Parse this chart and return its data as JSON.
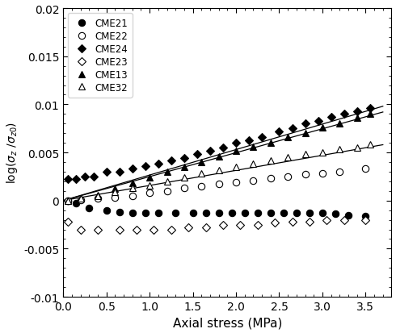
{
  "xlabel": "Axial stress (MPa)",
  "ylabel": "log(σ_z /σ_z0)",
  "xlim": [
    0,
    3.8
  ],
  "ylim": [
    -0.01,
    0.02
  ],
  "yticks": [
    -0.01,
    -0.005,
    0,
    0.005,
    0.01,
    0.015,
    0.02
  ],
  "xticks": [
    0,
    0.5,
    1.0,
    1.5,
    2.0,
    2.5,
    3.0,
    3.5
  ],
  "series": {
    "CME21": {
      "marker": "o",
      "filled": true,
      "has_line": false,
      "x": [
        0.05,
        0.15,
        0.3,
        0.5,
        0.65,
        0.8,
        0.95,
        1.1,
        1.3,
        1.5,
        1.65,
        1.8,
        1.95,
        2.1,
        2.25,
        2.4,
        2.55,
        2.7,
        2.85,
        3.0,
        3.15,
        3.3,
        3.5
      ],
      "y": [
        0.0,
        -0.0003,
        -0.0008,
        -0.001,
        -0.0012,
        -0.0013,
        -0.0013,
        -0.0013,
        -0.0013,
        -0.0013,
        -0.0013,
        -0.0013,
        -0.0013,
        -0.0013,
        -0.0013,
        -0.0013,
        -0.0013,
        -0.0013,
        -0.0013,
        -0.0013,
        -0.0014,
        -0.0015,
        -0.0016
      ]
    },
    "CME22": {
      "marker": "o",
      "filled": false,
      "has_line": false,
      "x": [
        0.05,
        0.2,
        0.4,
        0.6,
        0.8,
        1.0,
        1.2,
        1.4,
        1.6,
        1.8,
        2.0,
        2.2,
        2.4,
        2.6,
        2.8,
        3.0,
        3.2,
        3.5
      ],
      "y": [
        0.0,
        0.0001,
        0.0002,
        0.0003,
        0.0005,
        0.0008,
        0.001,
        0.0013,
        0.0015,
        0.0017,
        0.0019,
        0.0021,
        0.0023,
        0.0025,
        0.0027,
        0.0028,
        0.003,
        0.0033
      ]
    },
    "CME24": {
      "marker": "D",
      "filled": true,
      "has_line": true,
      "line_x": [
        0.0,
        3.7
      ],
      "line_y": [
        0.0,
        0.0098
      ],
      "x": [
        0.05,
        0.15,
        0.25,
        0.35,
        0.5,
        0.65,
        0.8,
        0.95,
        1.1,
        1.25,
        1.4,
        1.55,
        1.7,
        1.85,
        2.0,
        2.15,
        2.3,
        2.5,
        2.65,
        2.8,
        2.95,
        3.1,
        3.25,
        3.4,
        3.55
      ],
      "y": [
        0.0022,
        0.0022,
        0.0025,
        0.0025,
        0.003,
        0.003,
        0.0033,
        0.0036,
        0.0038,
        0.0042,
        0.0044,
        0.0048,
        0.0052,
        0.0055,
        0.006,
        0.0063,
        0.0066,
        0.0072,
        0.0075,
        0.008,
        0.0083,
        0.0087,
        0.009,
        0.0093,
        0.0096
      ]
    },
    "CME23": {
      "marker": "D",
      "filled": false,
      "has_line": false,
      "x": [
        0.05,
        0.2,
        0.4,
        0.65,
        0.85,
        1.05,
        1.25,
        1.45,
        1.65,
        1.85,
        2.05,
        2.25,
        2.45,
        2.65,
        2.85,
        3.05,
        3.25,
        3.5
      ],
      "y": [
        -0.0022,
        -0.003,
        -0.003,
        -0.003,
        -0.003,
        -0.003,
        -0.003,
        -0.0028,
        -0.0028,
        -0.0025,
        -0.0025,
        -0.0025,
        -0.0023,
        -0.0022,
        -0.0022,
        -0.002,
        -0.002,
        -0.002
      ]
    },
    "CME13": {
      "marker": "^",
      "filled": true,
      "has_line": true,
      "line_x": [
        0.0,
        3.7
      ],
      "line_y": [
        0.0,
        0.0092
      ],
      "x": [
        0.05,
        0.2,
        0.4,
        0.6,
        0.8,
        1.0,
        1.2,
        1.4,
        1.6,
        1.8,
        2.0,
        2.2,
        2.4,
        2.6,
        2.8,
        3.0,
        3.2,
        3.4,
        3.55
      ],
      "y": [
        0.0,
        0.0002,
        0.0006,
        0.0012,
        0.0018,
        0.0024,
        0.003,
        0.0035,
        0.004,
        0.0046,
        0.0052,
        0.0056,
        0.006,
        0.0066,
        0.007,
        0.0076,
        0.008,
        0.0086,
        0.009
      ]
    },
    "CME32": {
      "marker": "^",
      "filled": false,
      "has_line": true,
      "line_x": [
        0.0,
        3.7
      ],
      "line_y": [
        0.0,
        0.0058
      ],
      "x": [
        0.05,
        0.2,
        0.4,
        0.6,
        0.8,
        1.0,
        1.2,
        1.4,
        1.6,
        1.8,
        2.0,
        2.2,
        2.4,
        2.6,
        2.8,
        3.0,
        3.2,
        3.4,
        3.55
      ],
      "y": [
        0.0,
        0.0002,
        0.0005,
        0.0009,
        0.0013,
        0.0016,
        0.002,
        0.0024,
        0.0028,
        0.0032,
        0.0035,
        0.0038,
        0.0042,
        0.0045,
        0.0048,
        0.005,
        0.0053,
        0.0055,
        0.0058
      ]
    }
  },
  "figsize": [
    4.9,
    4.14
  ],
  "dpi": 100
}
